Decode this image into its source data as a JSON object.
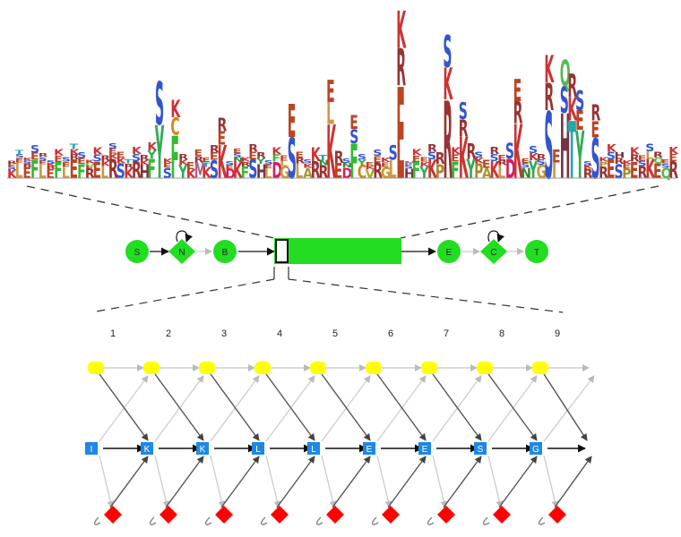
{
  "colors": {
    "plan_node": "#22dd22",
    "insert_state": "#ffff00",
    "match_state": "#1e88e5",
    "delete_state": "#ff0000",
    "arrow_dark": "#555555",
    "arrow_light": "#cfcfcf",
    "arrow_main": "#111111"
  },
  "logo": {
    "columns": [
      [
        "K",
        "S",
        "E",
        "R"
      ],
      [
        "L",
        "E",
        "S",
        "T"
      ],
      [
        "E",
        "R",
        "S",
        "K"
      ],
      [
        "F",
        "E",
        "S"
      ],
      [
        "L",
        "E",
        "S",
        "R"
      ],
      [
        "E",
        "R",
        "K",
        "S"
      ],
      [
        "F",
        "E",
        "K"
      ],
      [
        "L",
        "E",
        "S"
      ],
      [
        "E",
        "R",
        "K",
        "T"
      ],
      [
        "F",
        "E",
        "S"
      ],
      [
        "R",
        "E",
        "Q",
        "K"
      ],
      [
        "E",
        "S",
        "K"
      ],
      [
        "L",
        "K",
        "R"
      ],
      [
        "R",
        "K",
        "E",
        "S"
      ],
      [
        "S",
        "K",
        "E"
      ],
      [
        "K",
        "R",
        "T"
      ],
      [
        "R",
        "S",
        "K"
      ],
      [
        "H",
        "K",
        "R"
      ],
      [
        "F",
        "Y",
        "K"
      ],
      [
        "Y",
        "S"
      ],
      [
        "S",
        "E",
        "K"
      ],
      [
        "F",
        "C",
        "K"
      ],
      [
        "Y",
        "K",
        "R"
      ],
      [
        "K",
        "E"
      ],
      [
        "M",
        "R",
        "E"
      ],
      [
        "K",
        "T",
        "E"
      ],
      [
        "S",
        "E",
        "R"
      ],
      [
        "K",
        "E",
        "R"
      ],
      [
        "D",
        "E",
        "S"
      ],
      [
        "K",
        "N",
        "S",
        "E"
      ],
      [
        "F",
        "R",
        "K"
      ],
      [
        "S",
        "E",
        "R"
      ],
      [
        "H",
        "Y",
        "R"
      ],
      [
        "L",
        "E",
        "S"
      ],
      [
        "D",
        "F",
        "K"
      ],
      [
        "G",
        "L",
        "E"
      ],
      [
        "S",
        "E"
      ],
      [
        "L",
        "R",
        "E"
      ],
      [
        "A",
        "K",
        "S"
      ],
      [
        "R",
        "K"
      ],
      [
        "R",
        "N",
        "T"
      ],
      [
        "K",
        "L",
        "E"
      ],
      [
        "E",
        "R"
      ],
      [
        "D",
        "N",
        "S"
      ],
      [
        "F",
        "S",
        "E"
      ],
      [
        "C",
        "Y",
        "S"
      ],
      [
        "V",
        "K",
        "E"
      ],
      [
        "R",
        "E",
        "S"
      ],
      [
        "G",
        "E",
        "K"
      ],
      [
        "L",
        "S"
      ],
      [
        "E",
        "R",
        "K"
      ],
      [
        "H",
        "S",
        "M"
      ],
      [
        "F",
        "E",
        "K"
      ],
      [
        "Y",
        "K",
        "E"
      ],
      [
        "K",
        "S",
        "R"
      ],
      [
        "P",
        "R"
      ],
      [
        "R",
        "K",
        "S"
      ],
      [
        "F",
        "E",
        "K"
      ],
      [
        "K",
        "R",
        "S"
      ],
      [
        "Y",
        "R"
      ],
      [
        "P",
        "K",
        "S"
      ],
      [
        "A",
        "E"
      ],
      [
        "K",
        "S",
        "R"
      ],
      [
        "L",
        "R",
        "E"
      ],
      [
        "D",
        "S"
      ],
      [
        "K",
        "R",
        "E"
      ],
      [
        "N",
        "S",
        "E"
      ],
      [
        "Y",
        "K",
        "S"
      ],
      [
        "G",
        "S",
        "R"
      ],
      [
        "S",
        "R",
        "K"
      ],
      [
        "I",
        "E"
      ],
      [
        "H",
        "S",
        "Q"
      ],
      [
        "T",
        "K",
        "R"
      ],
      [
        "Y",
        "E",
        "S"
      ],
      [
        "R",
        "K",
        "S"
      ],
      [
        "S",
        "E",
        "R"
      ],
      [
        "R",
        "P",
        "K"
      ],
      [
        "E",
        "S",
        "K"
      ],
      [
        "S",
        "R",
        "H"
      ],
      [
        "P",
        "E",
        "K"
      ],
      [
        "E",
        "R",
        "K"
      ],
      [
        "R",
        "S",
        "E"
      ],
      [
        "K",
        "L",
        "S"
      ],
      [
        "E",
        "Q",
        "R"
      ],
      [
        "Q",
        "S",
        "E"
      ],
      [
        "R",
        "E",
        "K"
      ]
    ]
  },
  "plan_nodes": [
    {
      "id": "S",
      "label": "S",
      "shape": "circle"
    },
    {
      "id": "N",
      "label": "N",
      "shape": "diamond"
    },
    {
      "id": "B",
      "label": "B",
      "shape": "circle"
    },
    {
      "id": "E",
      "label": "E",
      "shape": "circle"
    },
    {
      "id": "C",
      "label": "C",
      "shape": "diamond"
    },
    {
      "id": "T",
      "label": "T",
      "shape": "circle"
    }
  ],
  "positions": [
    "1",
    "2",
    "3",
    "4",
    "5",
    "6",
    "7",
    "8",
    "9"
  ],
  "match_states": [
    "I",
    "K",
    "K",
    "L",
    "L",
    "E",
    "E",
    "S",
    "G"
  ]
}
